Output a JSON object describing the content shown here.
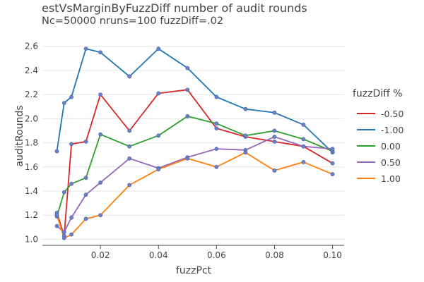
{
  "chart_data": {
    "type": "line",
    "title": "estVsMarginByFuzzDiff number of audit rounds",
    "subtitle": "Nc=50000 nruns=100 fuzzDiff=.02",
    "xlabel": "fuzzPct",
    "ylabel": "auditRounds",
    "xlim": [
      0,
      0.104
    ],
    "ylim": [
      0.95,
      2.68
    ],
    "xticks": [
      "0.02",
      "0.04",
      "0.06",
      "0.08",
      "0.10"
    ],
    "xtick_values": [
      0.02,
      0.04,
      0.06,
      0.08,
      0.1
    ],
    "yticks": [
      "1.0",
      "1.2",
      "1.4",
      "1.6",
      "1.8",
      "2.0",
      "2.2",
      "2.4",
      "2.6"
    ],
    "ytick_values": [
      1.0,
      1.2,
      1.4,
      1.6,
      1.8,
      2.0,
      2.2,
      2.4,
      2.6
    ],
    "grid": "horizontal",
    "legend_title": "fuzzDiff %",
    "legend_position": "right",
    "marker_color": "#6a80c8",
    "x": [
      0.005,
      0.0075,
      0.01,
      0.015,
      0.02,
      0.03,
      0.04,
      0.05,
      0.06,
      0.07,
      0.08,
      0.09,
      0.1
    ],
    "series": [
      {
        "name": "-0.50",
        "color": "#d62728",
        "values": [
          1.22,
          1.03,
          1.79,
          1.81,
          2.2,
          1.9,
          2.21,
          2.24,
          1.92,
          1.85,
          1.81,
          1.77,
          1.63
        ]
      },
      {
        "name": "-1.00",
        "color": "#1f77b4",
        "values": [
          1.73,
          2.13,
          2.18,
          2.58,
          2.55,
          2.35,
          2.58,
          2.42,
          2.18,
          2.08,
          2.05,
          1.95,
          1.72
        ]
      },
      {
        "name": "0.00",
        "color": "#2ca02c",
        "values": [
          1.19,
          1.39,
          1.46,
          1.51,
          1.87,
          1.77,
          1.86,
          2.02,
          1.96,
          1.86,
          1.9,
          1.83,
          1.73
        ]
      },
      {
        "name": "0.50",
        "color": "#9467bd",
        "values": [
          1.11,
          1.06,
          1.18,
          1.37,
          1.47,
          1.67,
          1.59,
          1.68,
          1.75,
          1.74,
          1.85,
          1.77,
          1.75
        ]
      },
      {
        "name": "1.00",
        "color": "#ff7f0e",
        "values": [
          1.2,
          1.01,
          1.04,
          1.17,
          1.2,
          1.45,
          1.58,
          1.67,
          1.6,
          1.72,
          1.57,
          1.64,
          1.54
        ]
      }
    ]
  }
}
